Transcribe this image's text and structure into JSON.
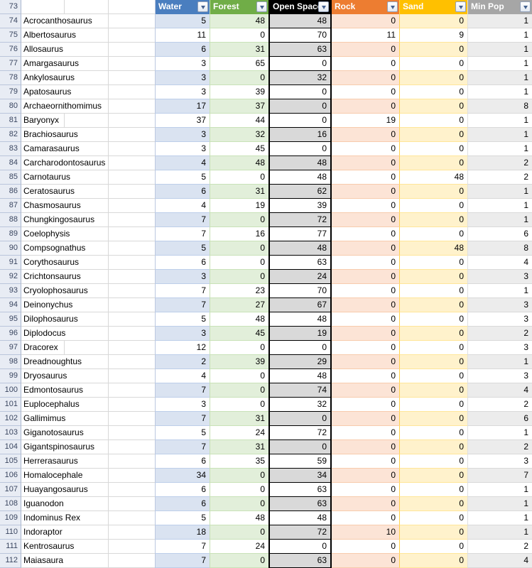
{
  "sheet": {
    "header_row_number": "73",
    "columns": [
      {
        "id": "water",
        "label": "Water",
        "header_bg": "#4A7EBF",
        "header_text": "#FFFFFF",
        "band_bg": "#DAE3F1"
      },
      {
        "id": "forest",
        "label": "Forest",
        "header_bg": "#70AD47",
        "header_text": "#FFFFFF",
        "band_bg": "#E2EFDA"
      },
      {
        "id": "open-space",
        "label": "Open Space",
        "header_bg": "#000000",
        "header_text": "#FFFFFF",
        "band_bg": "#D9D9D9"
      },
      {
        "id": "rock",
        "label": "Rock",
        "header_bg": "#ED7D31",
        "header_text": "#FFFFFF",
        "band_bg": "#FCE4D6"
      },
      {
        "id": "sand",
        "label": "Sand",
        "header_bg": "#FFC000",
        "header_text": "#FFFFFF",
        "band_bg": "#FFF2CC"
      },
      {
        "id": "min-pop",
        "label": "Min Pop",
        "header_bg": "#A6A6A6",
        "header_text": "#FFFFFF",
        "band_bg": "#ECECEC"
      }
    ],
    "filter_icon": "filter-dropdown-arrow",
    "rows": [
      {
        "n": "74",
        "name": "Acrocanthosaurus",
        "values": [
          5,
          48,
          48,
          0,
          0,
          1
        ],
        "banded": true
      },
      {
        "n": "75",
        "name": "Albertosaurus",
        "values": [
          11,
          0,
          70,
          11,
          9,
          1
        ],
        "banded": false
      },
      {
        "n": "76",
        "name": "Allosaurus",
        "values": [
          6,
          31,
          63,
          0,
          0,
          1
        ],
        "banded": true
      },
      {
        "n": "77",
        "name": "Amargasaurus",
        "values": [
          3,
          65,
          0,
          0,
          0,
          1
        ],
        "banded": false
      },
      {
        "n": "78",
        "name": "Ankylosaurus",
        "values": [
          3,
          0,
          32,
          0,
          0,
          1
        ],
        "banded": true
      },
      {
        "n": "79",
        "name": "Apatosaurus",
        "values": [
          3,
          39,
          0,
          0,
          0,
          1
        ],
        "banded": false
      },
      {
        "n": "80",
        "name": "Archaeornithomimus",
        "values": [
          17,
          37,
          0,
          0,
          0,
          8
        ],
        "banded": true
      },
      {
        "n": "81",
        "name": "Baryonyx",
        "values": [
          37,
          44,
          0,
          19,
          0,
          1
        ],
        "banded": false
      },
      {
        "n": "82",
        "name": "Brachiosaurus",
        "values": [
          3,
          32,
          16,
          0,
          0,
          1
        ],
        "banded": true
      },
      {
        "n": "83",
        "name": "Camarasaurus",
        "values": [
          3,
          45,
          0,
          0,
          0,
          1
        ],
        "banded": false
      },
      {
        "n": "84",
        "name": "Carcharodontosaurus",
        "values": [
          4,
          48,
          48,
          0,
          0,
          2
        ],
        "banded": true
      },
      {
        "n": "85",
        "name": "Carnotaurus",
        "values": [
          5,
          0,
          48,
          0,
          48,
          2
        ],
        "banded": false
      },
      {
        "n": "86",
        "name": "Ceratosaurus",
        "values": [
          6,
          31,
          62,
          0,
          0,
          1
        ],
        "banded": true
      },
      {
        "n": "87",
        "name": "Chasmosaurus",
        "values": [
          4,
          19,
          39,
          0,
          0,
          1
        ],
        "banded": false
      },
      {
        "n": "88",
        "name": "Chungkingosaurus",
        "values": [
          7,
          0,
          72,
          0,
          0,
          1
        ],
        "banded": true
      },
      {
        "n": "89",
        "name": "Coelophysis",
        "values": [
          7,
          16,
          77,
          0,
          0,
          6
        ],
        "banded": false
      },
      {
        "n": "90",
        "name": "Compsognathus",
        "values": [
          5,
          0,
          48,
          0,
          48,
          8
        ],
        "banded": true
      },
      {
        "n": "91",
        "name": "Corythosaurus",
        "values": [
          6,
          0,
          63,
          0,
          0,
          4
        ],
        "banded": false
      },
      {
        "n": "92",
        "name": "Crichtonsaurus",
        "values": [
          3,
          0,
          24,
          0,
          0,
          3
        ],
        "banded": true
      },
      {
        "n": "93",
        "name": "Cryolophosaurus",
        "values": [
          7,
          23,
          70,
          0,
          0,
          1
        ],
        "banded": false
      },
      {
        "n": "94",
        "name": "Deinonychus",
        "values": [
          7,
          27,
          67,
          0,
          0,
          3
        ],
        "banded": true
      },
      {
        "n": "95",
        "name": "Dilophosaurus",
        "values": [
          5,
          48,
          48,
          0,
          0,
          3
        ],
        "banded": false
      },
      {
        "n": "96",
        "name": "Diplodocus",
        "values": [
          3,
          45,
          19,
          0,
          0,
          2
        ],
        "banded": true
      },
      {
        "n": "97",
        "name": "Dracorex",
        "values": [
          12,
          0,
          0,
          0,
          0,
          3
        ],
        "banded": false
      },
      {
        "n": "98",
        "name": "Dreadnoughtus",
        "values": [
          2,
          39,
          29,
          0,
          0,
          1
        ],
        "banded": true
      },
      {
        "n": "99",
        "name": "Dryosaurus",
        "values": [
          4,
          0,
          48,
          0,
          0,
          3
        ],
        "banded": false
      },
      {
        "n": "100",
        "name": "Edmontosaurus",
        "values": [
          7,
          0,
          74,
          0,
          0,
          4
        ],
        "banded": true
      },
      {
        "n": "101",
        "name": "Euplocephalus",
        "values": [
          3,
          0,
          32,
          0,
          0,
          2
        ],
        "banded": false
      },
      {
        "n": "102",
        "name": "Gallimimus",
        "values": [
          7,
          31,
          0,
          0,
          0,
          6
        ],
        "banded": true
      },
      {
        "n": "103",
        "name": "Giganotosaurus",
        "values": [
          5,
          24,
          72,
          0,
          0,
          1
        ],
        "banded": false
      },
      {
        "n": "104",
        "name": "Gigantspinosaurus",
        "values": [
          7,
          31,
          0,
          0,
          0,
          2
        ],
        "banded": true
      },
      {
        "n": "105",
        "name": "Herrerasaurus",
        "values": [
          6,
          35,
          59,
          0,
          0,
          3
        ],
        "banded": false
      },
      {
        "n": "106",
        "name": "Homalocephale",
        "values": [
          34,
          0,
          34,
          0,
          0,
          7
        ],
        "banded": true
      },
      {
        "n": "107",
        "name": "Huayangosaurus",
        "values": [
          6,
          0,
          63,
          0,
          0,
          1
        ],
        "banded": false
      },
      {
        "n": "108",
        "name": "Iguanodon",
        "values": [
          6,
          0,
          63,
          0,
          0,
          1
        ],
        "banded": true
      },
      {
        "n": "109",
        "name": "Indominus Rex",
        "values": [
          5,
          48,
          48,
          0,
          0,
          1
        ],
        "banded": false
      },
      {
        "n": "110",
        "name": "Indoraptor",
        "values": [
          18,
          0,
          72,
          10,
          0,
          1
        ],
        "banded": true
      },
      {
        "n": "111",
        "name": "Kentrosaurus",
        "values": [
          7,
          24,
          0,
          0,
          0,
          2
        ],
        "banded": false
      },
      {
        "n": "112",
        "name": "Maiasaura",
        "values": [
          7,
          0,
          63,
          0,
          0,
          4
        ],
        "banded": true
      }
    ]
  }
}
